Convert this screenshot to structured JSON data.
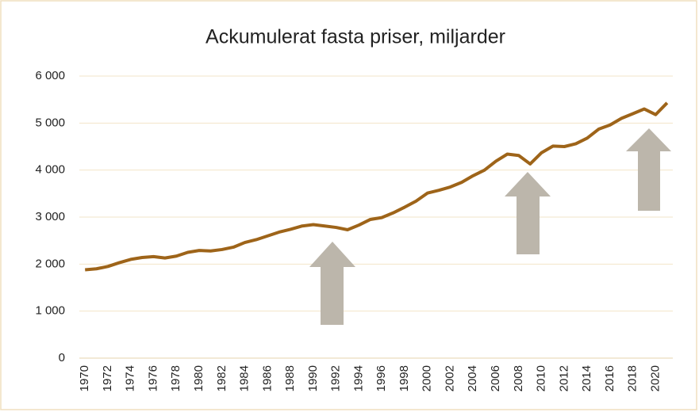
{
  "chart_data": {
    "type": "line",
    "title": "Ackumulerat fasta priser, miljarder",
    "x": [
      1970,
      1971,
      1972,
      1973,
      1974,
      1975,
      1976,
      1977,
      1978,
      1979,
      1980,
      1981,
      1982,
      1983,
      1984,
      1985,
      1986,
      1987,
      1988,
      1989,
      1990,
      1991,
      1992,
      1993,
      1994,
      1995,
      1996,
      1997,
      1998,
      1999,
      2000,
      2001,
      2002,
      2003,
      2004,
      2005,
      2006,
      2007,
      2008,
      2009,
      2010,
      2011,
      2012,
      2013,
      2014,
      2015,
      2016,
      2017,
      2018,
      2019,
      2020,
      2021
    ],
    "series": [
      {
        "color": "#9e6419",
        "values": [
          1880,
          1900,
          1950,
          2030,
          2100,
          2140,
          2160,
          2130,
          2170,
          2250,
          2290,
          2280,
          2310,
          2360,
          2460,
          2520,
          2600,
          2680,
          2740,
          2810,
          2840,
          2810,
          2780,
          2730,
          2830,
          2950,
          2990,
          3090,
          3210,
          3340,
          3510,
          3570,
          3640,
          3740,
          3880,
          4000,
          4190,
          4340,
          4310,
          4130,
          4370,
          4510,
          4500,
          4560,
          4680,
          4870,
          4960,
          5100,
          5200,
          5300,
          5180,
          5430
        ]
      }
    ],
    "xlim": [
      1969.5,
      2021.5
    ],
    "xticks": [
      1970,
      1972,
      1974,
      1976,
      1978,
      1980,
      1982,
      1984,
      1986,
      1988,
      1990,
      1992,
      1994,
      1996,
      1998,
      2000,
      2002,
      2004,
      2006,
      2008,
      2010,
      2012,
      2014,
      2016,
      2018,
      2020
    ],
    "ylim": [
      0,
      6000
    ],
    "yticks": [
      0,
      {
        "value": 1000,
        "label": "1 000"
      },
      {
        "value": 2000,
        "label": "2 000"
      },
      {
        "value": 3000,
        "label": "3 000"
      },
      {
        "value": 4000,
        "label": "4 000"
      },
      {
        "value": 5000,
        "label": "5 000"
      },
      {
        "value": 6000,
        "label": "6 000"
      }
    ],
    "grid": true
  }
}
